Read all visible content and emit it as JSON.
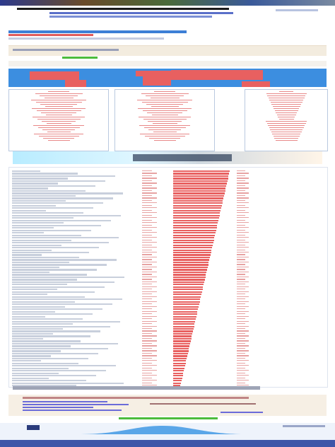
{
  "header": {
    "site_label": "",
    "top_right": "",
    "page_title": ""
  },
  "notice": {
    "text": ""
  },
  "list": {
    "row_count": 88
  },
  "footer": {
    "title": "",
    "links": [
      "",
      "",
      "",
      "",
      "",
      ""
    ]
  },
  "colors": {
    "accent": "#3d7fd6",
    "bar": "#e86060",
    "map_water": "#3c8ee0",
    "nav": "#3d55a8"
  }
}
